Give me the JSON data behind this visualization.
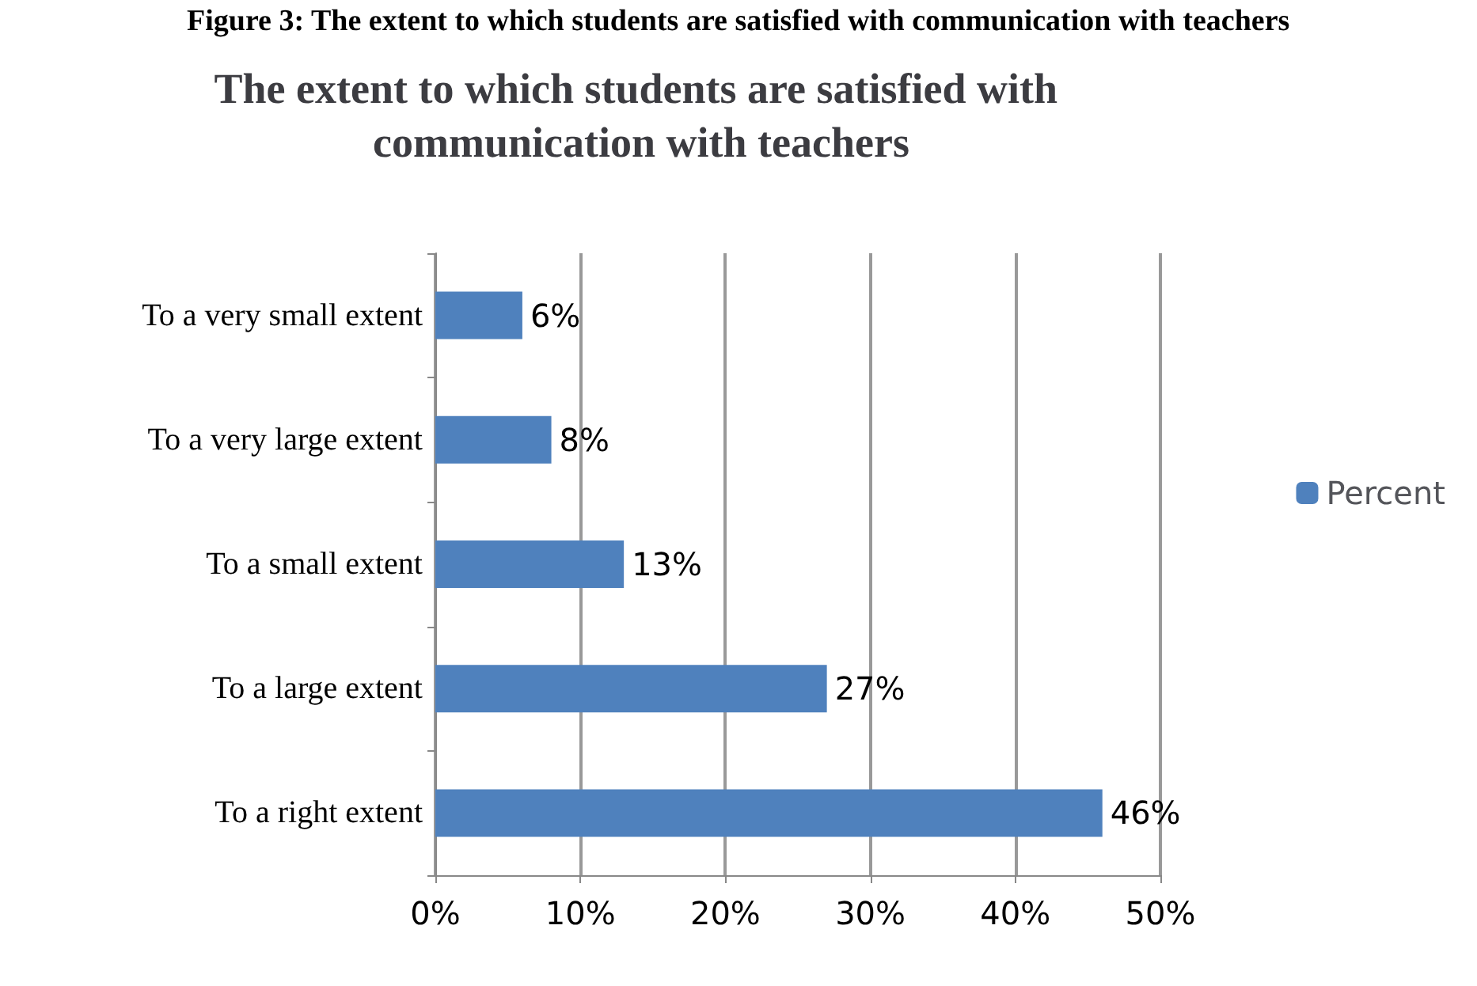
{
  "chart_data": {
    "type": "bar",
    "orientation": "horizontal",
    "title": "The extent to which students are satisfied with communication with teachers",
    "annotations": [
      "Figure 3: The extent to which students are satisfied with communication with teachers"
    ],
    "categories": [
      "To a very small extent",
      "To a very large extent",
      "To a small extent",
      "To a large extent",
      "To a right extent"
    ],
    "series": [
      {
        "name": "Percent",
        "color": "#4f81bd",
        "values": [
          6,
          8,
          13,
          27,
          46
        ],
        "value_labels": [
          "6%",
          "8%",
          "13%",
          "27%",
          "46%"
        ]
      }
    ],
    "xlim": [
      0,
      50
    ],
    "xticks": [
      {
        "value": 0,
        "label": "0%"
      },
      {
        "value": 10,
        "label": "10%"
      },
      {
        "value": 20,
        "label": "20%"
      },
      {
        "value": 30,
        "label": "30%"
      },
      {
        "value": 40,
        "label": "40%"
      },
      {
        "value": 50,
        "label": "50%"
      }
    ],
    "grid": "x",
    "legend": "right"
  }
}
